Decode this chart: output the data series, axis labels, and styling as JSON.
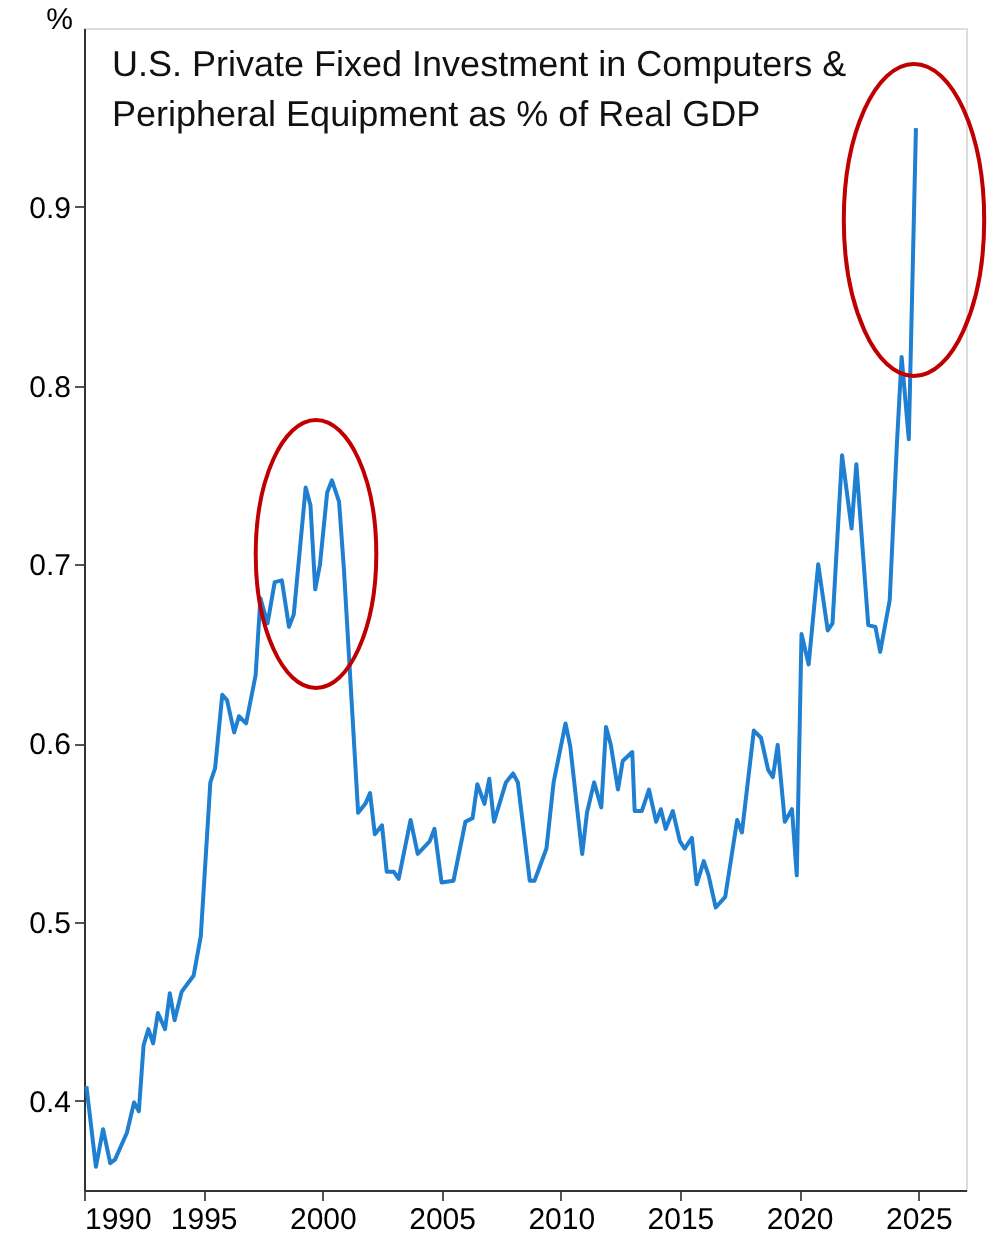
{
  "chart_data": {
    "type": "line",
    "title": "U.S. Private Fixed Investment in Computers & Peripheral Equipment as % of Real GDP",
    "ylabel": "%",
    "x": [
      1990.1,
      1990.5,
      1990.8,
      1991.1,
      1991.3,
      1991.8,
      1992.1,
      1992.3,
      1992.5,
      1992.7,
      1992.9,
      1993.1,
      1993.4,
      1993.6,
      1993.8,
      1994.1,
      1994.6,
      1994.9,
      1995.3,
      1995.5,
      1995.8,
      1996.0,
      1996.3,
      1996.5,
      1996.8,
      1997.2,
      1997.4,
      1997.7,
      1998.0,
      1998.3,
      1998.6,
      1998.8,
      1999.3,
      1999.5,
      1999.7,
      1999.9,
      2000.2,
      2000.4,
      2000.7,
      2000.9,
      2001.5,
      2001.8,
      2002.0,
      2002.2,
      2002.5,
      2002.7,
      2003.0,
      2003.2,
      2003.7,
      2004.0,
      2004.5,
      2004.7,
      2005.0,
      2005.5,
      2006.0,
      2006.3,
      2006.5,
      2006.8,
      2007.0,
      2007.2,
      2007.7,
      2008.0,
      2008.2,
      2008.7,
      2008.9,
      2009.4,
      2009.7,
      2010.2,
      2010.4,
      2010.9,
      2011.1,
      2011.4,
      2011.7,
      2011.9,
      2012.1,
      2012.4,
      2012.6,
      2013.0,
      2013.1,
      2013.4,
      2013.7,
      2014.0,
      2014.2,
      2014.4,
      2014.7,
      2015.0,
      2015.2,
      2015.5,
      2015.7,
      2016.0,
      2016.2,
      2016.5,
      2016.9,
      2017.4,
      2017.6,
      2018.1,
      2018.4,
      2018.7,
      2018.9,
      2019.1,
      2019.4,
      2019.7,
      2019.9,
      2020.1,
      2020.4,
      2020.8,
      2021.2,
      2021.4,
      2021.8,
      2022.2,
      2022.4,
      2022.9,
      2023.2,
      2023.4,
      2023.8,
      2024.1,
      2024.3,
      2024.6,
      2024.9
    ],
    "series": [
      {
        "color": "#1f7fd0",
        "values": [
          0.408,
          0.363,
          0.384,
          0.365,
          0.367,
          0.382,
          0.399,
          0.394,
          0.431,
          0.44,
          0.432,
          0.449,
          0.44,
          0.46,
          0.445,
          0.461,
          0.47,
          0.492,
          0.578,
          0.586,
          0.627,
          0.624,
          0.606,
          0.615,
          0.611,
          0.638,
          0.681,
          0.667,
          0.69,
          0.691,
          0.665,
          0.672,
          0.743,
          0.733,
          0.686,
          0.7,
          0.74,
          0.747,
          0.735,
          0.698,
          0.561,
          0.566,
          0.572,
          0.549,
          0.554,
          0.528,
          0.528,
          0.524,
          0.557,
          0.538,
          0.545,
          0.552,
          0.522,
          0.523,
          0.556,
          0.558,
          0.577,
          0.566,
          0.58,
          0.556,
          0.578,
          0.583,
          0.578,
          0.523,
          0.523,
          0.541,
          0.578,
          0.611,
          0.598,
          0.538,
          0.561,
          0.578,
          0.564,
          0.609,
          0.599,
          0.574,
          0.59,
          0.595,
          0.562,
          0.562,
          0.574,
          0.556,
          0.563,
          0.552,
          0.562,
          0.545,
          0.541,
          0.547,
          0.521,
          0.534,
          0.526,
          0.508,
          0.514,
          0.557,
          0.55,
          0.607,
          0.603,
          0.585,
          0.581,
          0.599,
          0.556,
          0.563,
          0.526,
          0.661,
          0.644,
          0.7,
          0.663,
          0.667,
          0.761,
          0.72,
          0.756,
          0.666,
          0.665,
          0.651,
          0.68,
          0.767,
          0.816,
          0.77,
          0.944
        ]
      }
    ],
    "xlim": [
      1990,
      2027
    ],
    "xticks": [
      1990,
      1995,
      2000,
      2005,
      2010,
      2015,
      2020,
      2025
    ],
    "ylim": [
      0.35,
      1.0
    ],
    "yticks": [
      0.4,
      0.5,
      0.6,
      0.7,
      0.8,
      0.9
    ],
    "grid": false,
    "marker": "none",
    "line_style": "solid"
  }
}
